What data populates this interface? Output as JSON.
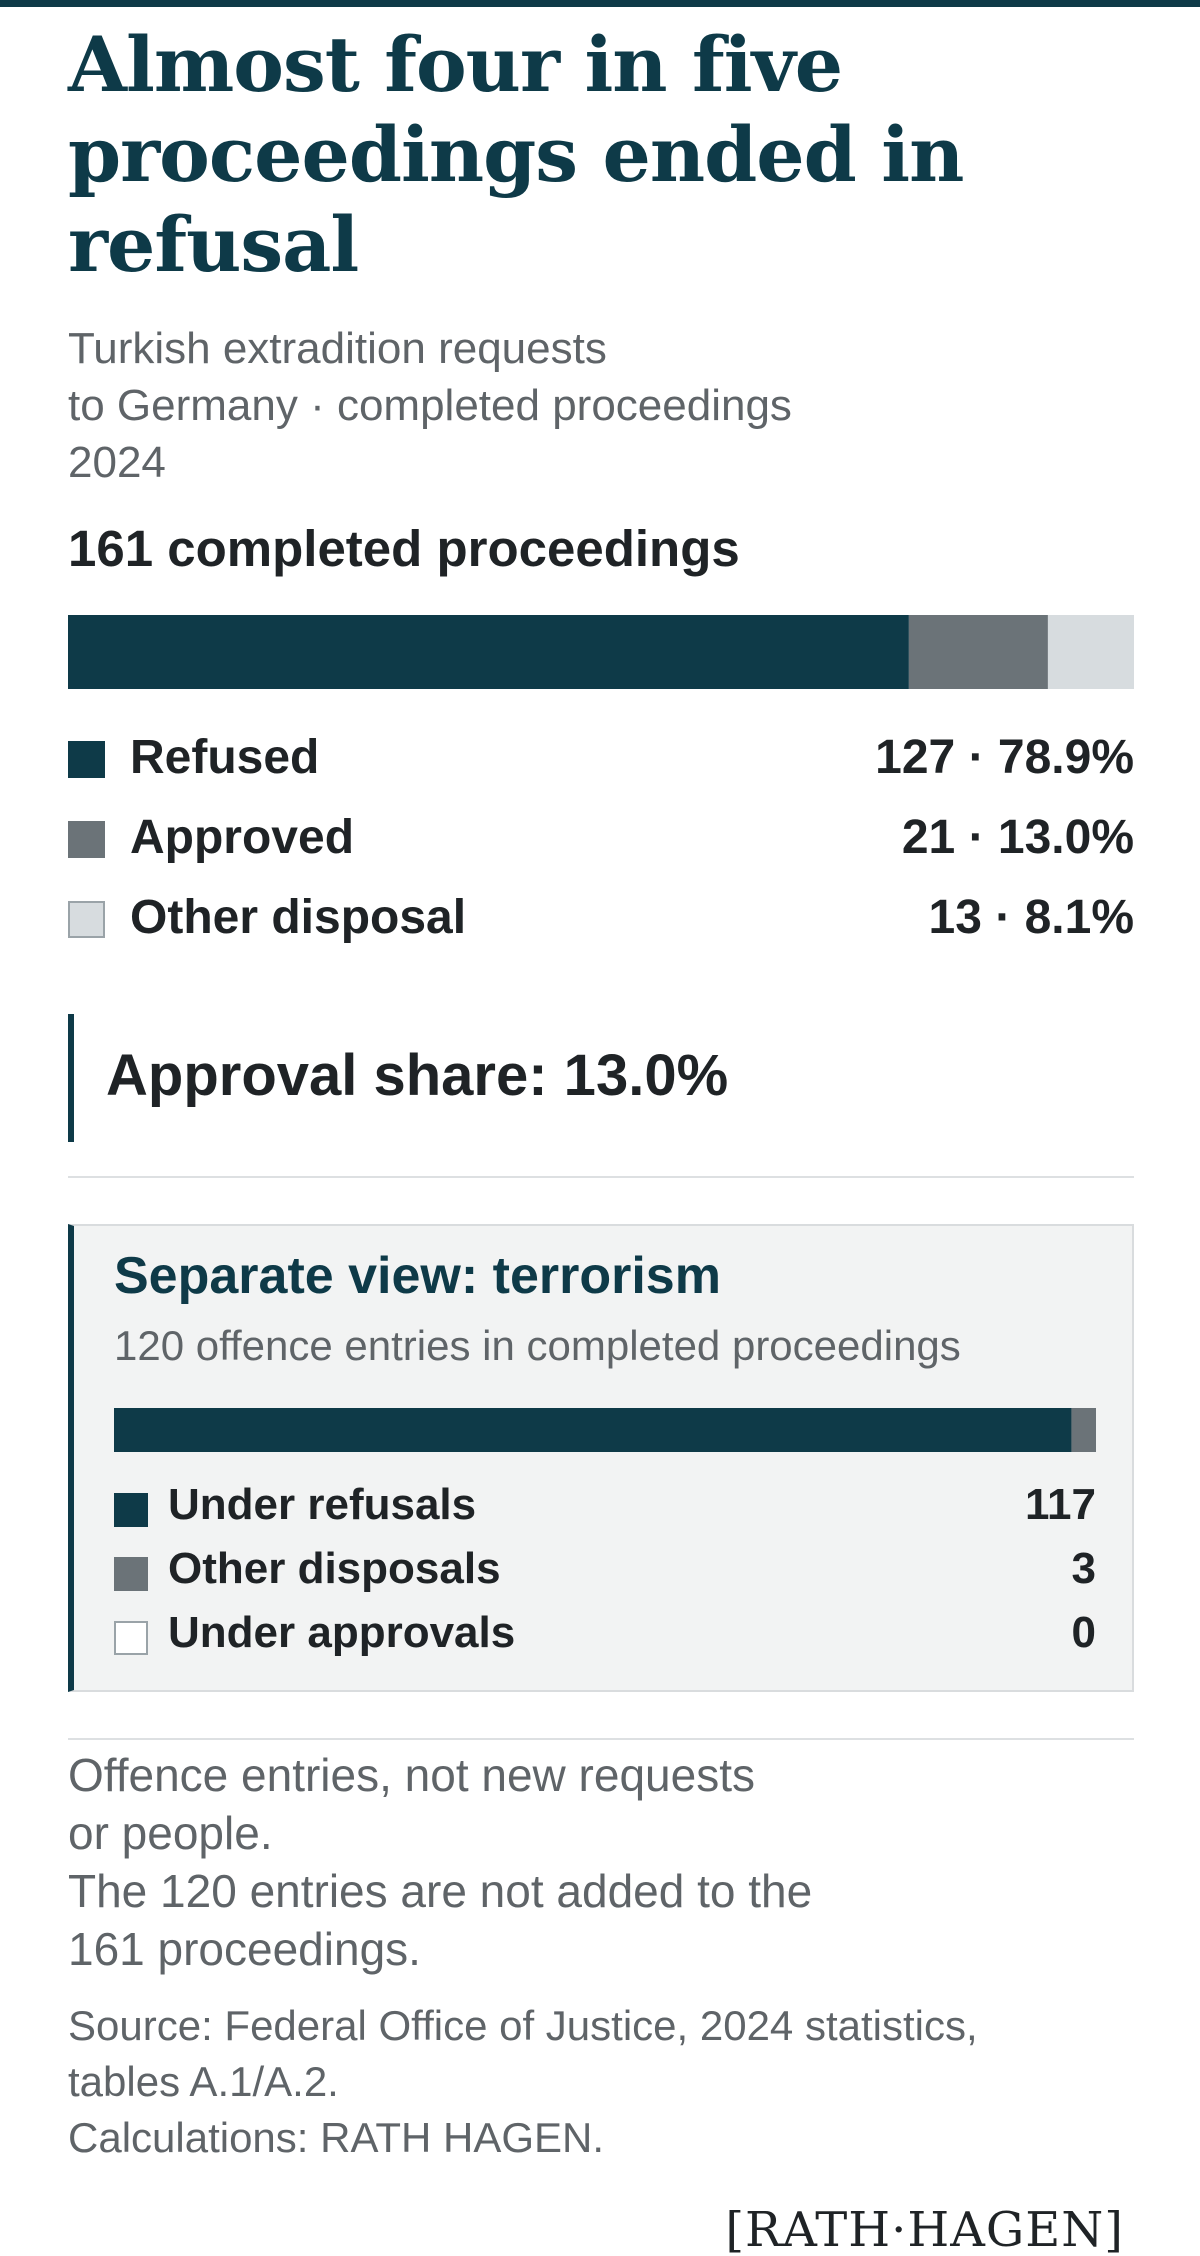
{
  "header": {
    "title": "Almost four in five proceedings ended in refusal",
    "subtitle": "Turkish extradition requests\nto Germany · completed proceedings\n2024"
  },
  "total_label": "161 completed proceedings",
  "chart_data": [
    {
      "type": "bar",
      "orientation": "horizontal-stacked",
      "title": "161 completed proceedings",
      "total": 161,
      "series": [
        {
          "name": "Refused",
          "value": 127,
          "percent": "78.9%",
          "label": "127 · 78.9%",
          "color": "#0e3a48"
        },
        {
          "name": "Approved",
          "value": 21,
          "percent": "13.0%",
          "label": "21 · 13.0%",
          "color": "#6b7378"
        },
        {
          "name": "Other disposal",
          "value": 13,
          "percent": "8.1%",
          "label": "13 · 8.1%",
          "color": "#d7dcdf"
        }
      ]
    },
    {
      "type": "bar",
      "orientation": "horizontal-stacked",
      "title": "Separate view: terrorism",
      "subtitle": "120 offence entries in completed proceedings",
      "total": 120,
      "series": [
        {
          "name": "Under refusals",
          "value": 117,
          "label": "117",
          "color": "#0e3a48"
        },
        {
          "name": "Other disposals",
          "value": 3,
          "label": "3",
          "color": "#6b7378"
        },
        {
          "name": "Under approvals",
          "value": 0,
          "label": "0",
          "color": "#ffffff"
        }
      ]
    }
  ],
  "callout": {
    "text": "Approval share: 13.0%"
  },
  "terrorism_box": {
    "title": "Separate view: terrorism",
    "subtitle": "120 offence entries in completed proceedings"
  },
  "notes": {
    "text": "Offence entries, not new requests\nor people.\nThe 120 entries are not added to the\n161 proceedings."
  },
  "source": {
    "text": "Source: Federal Office of Justice, 2024 statistics,\ntables A.1/A.2.\nCalculations: RATH HAGEN."
  },
  "logo": {
    "text": "[RATH·HAGEN]"
  }
}
